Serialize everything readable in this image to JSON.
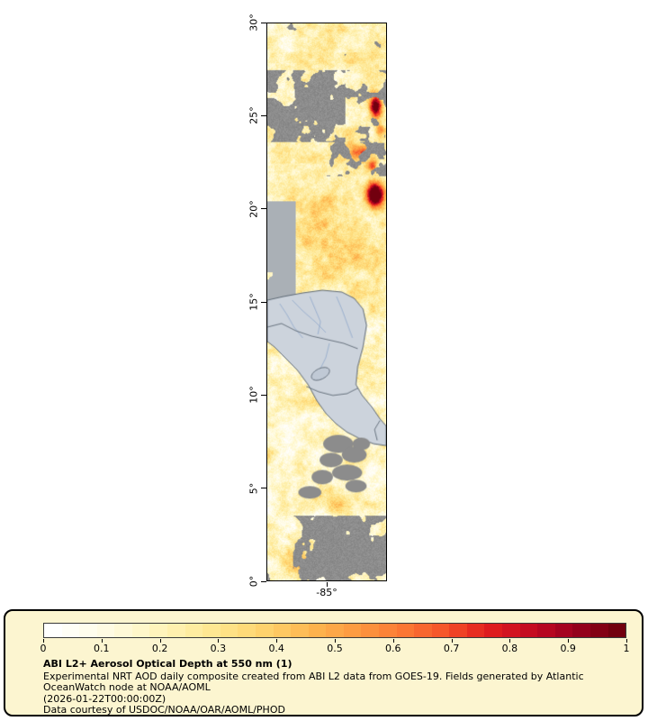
{
  "map": {
    "y_axis": {
      "tick_labels": [
        "30°",
        "25°",
        "20°",
        "15°",
        "10°",
        "5°",
        "0°"
      ]
    },
    "x_axis": {
      "tick_labels": [
        "-85°"
      ]
    },
    "colors": {
      "no_data_gray": "#8c8c8c",
      "glint_gray": "#aab0b6",
      "land": "#ccd3dc",
      "border_line": "#5f6a76",
      "water_line": "#8fa8cc"
    }
  },
  "legend": {
    "background": "#fcf5d0",
    "colorbar": {
      "tick_labels": [
        "0",
        "0.1",
        "0.2",
        "0.3",
        "0.4",
        "0.5",
        "0.6",
        "0.7",
        "0.8",
        "0.9",
        "1"
      ],
      "min": 0,
      "max": 1,
      "stops": [
        "#ffffff",
        "#fffdea",
        "#fff8cc",
        "#ffefa9",
        "#fee387",
        "#fed06a",
        "#feb54f",
        "#fd9a41",
        "#fc7b35",
        "#f6552a",
        "#e31f1e",
        "#c50b22",
        "#9d0020",
        "#72000f"
      ]
    },
    "title": "ABI L2+ Aerosol Optical Depth at 550 nm (1)",
    "description": [
      "Experimental NRT AOD daily composite created from ABI L2 data from GOES-19. Fields generated by Atlantic",
      "OceanWatch node at NOAA/AOML"
    ],
    "timestamp": "(2026-01-22T00:00:00Z)",
    "credit": "Data courtesy of USDOC/NOAA/OAR/AOML/PHOD"
  }
}
